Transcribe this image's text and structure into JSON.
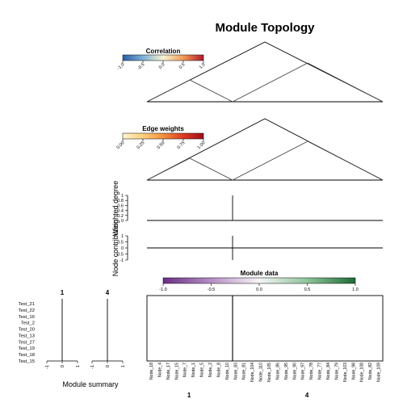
{
  "title": "Module Topology",
  "legends": {
    "correlation": {
      "title": "Correlation",
      "ticks": [
        "-1.0",
        "-0.5",
        "0.0",
        "0.5",
        "1.0"
      ],
      "colors": [
        "#2c5ea8",
        "#7fb0d5",
        "#f7f4d2",
        "#f09a58",
        "#b2182b"
      ]
    },
    "edge_weights": {
      "title": "Edge weights",
      "ticks": [
        "0.00",
        "0.25",
        "0.50",
        "0.75",
        "1.00"
      ],
      "colors": [
        "#fff6d0",
        "#fbd07a",
        "#f4913e",
        "#dd3c22",
        "#9e0f18"
      ]
    },
    "module_data": {
      "title": "Module data",
      "ticks": [
        "-1.0",
        "-0.5",
        "0.0",
        "0.5",
        "1.0"
      ],
      "colors": [
        "#6a2e86",
        "#b68fc4",
        "#f5f5f5",
        "#8fc49b",
        "#1d6b34"
      ]
    }
  },
  "panels": {
    "weighted_degree": {
      "label": "Weighted degree",
      "ticks": [
        "1",
        "0.8",
        "0.6",
        "0.4",
        "0.2",
        "0"
      ]
    },
    "node_contribution": {
      "label": "Node contribution",
      "ticks": [
        "1",
        "0.5",
        "0",
        "-0.5",
        "-1"
      ]
    }
  },
  "module_summary": {
    "label": "Module summary",
    "columns": [
      "1",
      "4"
    ],
    "ticks": [
      "-1",
      "0",
      "1"
    ]
  },
  "samples": [
    "Test_21",
    "Test_22",
    "Test_16",
    "Test_2",
    "Test_20",
    "Test_13",
    "Test_27",
    "Test_19",
    "Test_18",
    "Test_15"
  ],
  "nodes": [
    "Node_18",
    "Node_4",
    "Node_17",
    "Node_15",
    "Node_7",
    "Node_1",
    "Node_5",
    "Node_2",
    "Node_8",
    "Node_10",
    "Node_83",
    "Node_81",
    "Node_104",
    "Node_110",
    "Node_105",
    "Node_86",
    "Node_95",
    "Node_90",
    "Node_97",
    "Node_78",
    "Node_77",
    "Node_84",
    "Node_79",
    "Node_103",
    "Node_98",
    "Node_108",
    "Node_82",
    "Node_109"
  ],
  "module_labels": [
    "1",
    "4"
  ],
  "chart_data": {
    "type": "heatmap",
    "title": "Module Topology",
    "modules": [
      {
        "name": "1",
        "nodes": [
          "Node_18",
          "Node_4",
          "Node_17",
          "Node_15",
          "Node_7",
          "Node_1",
          "Node_5",
          "Node_2",
          "Node_8",
          "Node_10"
        ]
      },
      {
        "name": "4",
        "nodes": [
          "Node_83",
          "Node_81",
          "Node_104",
          "Node_110",
          "Node_105",
          "Node_86",
          "Node_95",
          "Node_90",
          "Node_97",
          "Node_78",
          "Node_77",
          "Node_84",
          "Node_79",
          "Node_103",
          "Node_98",
          "Node_108",
          "Node_82",
          "Node_109"
        ]
      }
    ],
    "weighted_degree": {
      "ylim": [
        0,
        1
      ],
      "values": [
        0,
        0
      ]
    },
    "node_contribution": {
      "ylim": [
        -1,
        1
      ],
      "values": [
        0,
        0
      ]
    },
    "module_summary_xlim": [
      -1,
      1
    ]
  }
}
